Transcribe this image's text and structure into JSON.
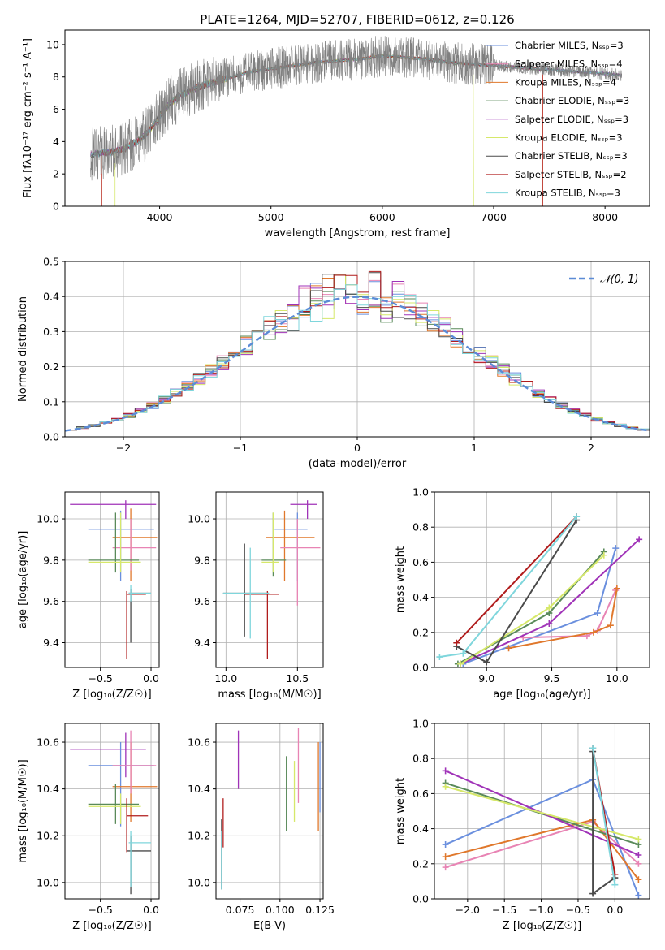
{
  "title": "PLATE=1264, MJD=52707, FIBERID=0612, z=0.126",
  "colors": {
    "Chabrier MILES": "#6a8fde",
    "Salpeter MILES": "#e884b4",
    "Kroupa MILES": "#e0782c",
    "Chabrier ELODIE": "#5a8a5a",
    "Salpeter ELODIE": "#a033b8",
    "Kroupa ELODIE": "#d6e86a",
    "Chabrier STELIB": "#4a4a4a",
    "Salpeter STELIB": "#b01c1c",
    "Kroupa STELIB": "#7fd6dc"
  },
  "chart_data": [
    {
      "id": "spectrum",
      "type": "line",
      "title": "PLATE=1264, MJD=52707, FIBERID=0612, z=0.126",
      "xlabel": "wavelength [Angstrom, rest frame]",
      "ylabel": "Flux [fλ10⁻¹⁷ erg cm⁻² s⁻¹ A⁻¹]",
      "xlim": [
        3150,
        8400
      ],
      "ylim": [
        0,
        10.9
      ],
      "xticks": [
        4000,
        5000,
        6000,
        7000,
        8000
      ],
      "yticks": [
        0,
        2,
        4,
        6,
        8,
        10
      ],
      "grid": false,
      "legend_position": "top-right",
      "legend": [
        {
          "label": "Chabrier MILES, Nₛₛₚ=3",
          "color": "#6a8fde"
        },
        {
          "label": "Salpeter MILES, Nₛₛₚ=4",
          "color": "#e884b4"
        },
        {
          "label": "Kroupa MILES, Nₛₛₚ=4",
          "color": "#e0782c"
        },
        {
          "label": "Chabrier ELODIE, Nₛₛₚ=3",
          "color": "#5a8a5a"
        },
        {
          "label": "Salpeter ELODIE, Nₛₛₚ=3",
          "color": "#a033b8"
        },
        {
          "label": "Kroupa ELODIE, Nₛₛₚ=3",
          "color": "#d6e86a"
        },
        {
          "label": "Chabrier STELIB, Nₛₛₚ=3",
          "color": "#4a4a4a"
        },
        {
          "label": "Salpeter STELIB, Nₛₛₚ=2",
          "color": "#b01c1c"
        },
        {
          "label": "Kroupa STELIB, Nₛₛₚ=3",
          "color": "#7fd6dc"
        }
      ],
      "data_curve": {
        "x": [
          3380,
          3600,
          3700,
          3800,
          3900,
          4000,
          4100,
          4200,
          4400,
          4600,
          4800,
          5000,
          5200,
          5400,
          5600,
          5800,
          6000,
          6200,
          6400,
          6600,
          6800,
          7000,
          7200,
          7400,
          7600,
          7800,
          8000,
          8150
        ],
        "y": [
          3.2,
          3.4,
          3.6,
          4.0,
          4.6,
          5.6,
          6.4,
          6.9,
          7.5,
          7.9,
          8.3,
          8.5,
          8.7,
          8.9,
          9.0,
          9.1,
          9.3,
          9.2,
          9.1,
          8.9,
          8.8,
          8.7,
          8.6,
          8.5,
          8.4,
          8.3,
          8.2,
          8.1
        ]
      },
      "model_cutoffs": {
        "Kroupa ELODIE": [
          3600,
          6820
        ],
        "Salpeter STELIB": [
          3480,
          7440
        ],
        "Kroupa MILES": [
          3480,
          7440
        ]
      }
    },
    {
      "id": "residuals",
      "type": "area",
      "xlabel": "(data-model)/error",
      "ylabel": "Normed distribution",
      "xlim": [
        -2.5,
        2.5
      ],
      "ylim": [
        0,
        0.5
      ],
      "xticks": [
        -2,
        -1,
        0,
        1,
        2
      ],
      "yticks": [
        0.0,
        0.1,
        0.2,
        0.3,
        0.4,
        0.5
      ],
      "grid": true,
      "legend_position": "top-right",
      "gaussian_label": "𝒩(0, 1)",
      "gaussian": {
        "mean": 0,
        "sigma": 1,
        "color": "#5b8bd6"
      },
      "bin_width": 0.1,
      "bin_start": -2.5
    },
    {
      "id": "age_vs_Z",
      "type": "scatter",
      "xlabel": "Z [log₁₀(Z/Z☉)]",
      "ylabel": "age  [log₁₀(age/yr)]",
      "xlim": [
        -0.85,
        0.08
      ],
      "ylim": [
        9.28,
        10.13
      ],
      "xticks": [
        -0.5,
        0.0
      ],
      "yticks": [
        9.4,
        9.6,
        9.8,
        10.0
      ],
      "grid": true,
      "points": [
        {
          "m": "Salpeter ELODIE",
          "x": -0.25,
          "y": 10.07,
          "xe": [
            -0.8,
            0.05
          ],
          "ye": [
            10.0,
            10.09
          ]
        },
        {
          "m": "Chabrier MILES",
          "x": -0.3,
          "y": 9.95,
          "xe": [
            -0.62,
            0.03
          ],
          "ye": [
            9.7,
            10.04
          ]
        },
        {
          "m": "Kroupa MILES",
          "x": -0.2,
          "y": 9.91,
          "xe": [
            -0.38,
            0.06
          ],
          "ye": [
            9.7,
            10.05
          ]
        },
        {
          "m": "Salpeter MILES",
          "x": -0.2,
          "y": 9.86,
          "xe": [
            -0.38,
            0.05
          ],
          "ye": [
            9.75,
            10.0
          ]
        },
        {
          "m": "Chabrier ELODIE",
          "x": -0.35,
          "y": 9.8,
          "xe": [
            -0.62,
            -0.12
          ],
          "ye": [
            9.74,
            10.03
          ]
        },
        {
          "m": "Kroupa ELODIE",
          "x": -0.3,
          "y": 9.79,
          "xe": [
            -0.62,
            -0.1
          ],
          "ye": [
            9.74,
            10.03
          ]
        },
        {
          "m": "Chabrier STELIB",
          "x": -0.2,
          "y": 9.64,
          "xe": [
            -0.22,
            0.0
          ],
          "ye": [
            9.4,
            9.66
          ]
        },
        {
          "m": "Salpeter STELIB",
          "x": -0.24,
          "y": 9.635,
          "xe": [
            -0.24,
            -0.05
          ],
          "ye": [
            9.32,
            9.65
          ]
        },
        {
          "m": "Kroupa STELIB",
          "x": -0.2,
          "y": 9.64,
          "xe": [
            -0.22,
            0.0
          ],
          "ye": [
            9.6,
            9.68
          ]
        }
      ]
    },
    {
      "id": "age_vs_mass",
      "type": "scatter",
      "xlabel": "mass [log₁₀(M/M☉)]",
      "ylabel": "",
      "xlim": [
        9.93,
        10.68
      ],
      "ylim": [
        9.28,
        10.13
      ],
      "xticks": [
        10.0,
        10.5
      ],
      "yticks": [
        9.4,
        9.6,
        9.8,
        10.0
      ],
      "grid": true,
      "points": [
        {
          "m": "Salpeter ELODIE",
          "x": 10.57,
          "y": 10.07,
          "xe": [
            10.45,
            10.64
          ],
          "ye": [
            10.0,
            10.09
          ]
        },
        {
          "m": "Chabrier MILES",
          "x": 10.5,
          "y": 9.95,
          "xe": [
            10.34,
            10.57
          ],
          "ye": [
            9.7,
            10.03
          ]
        },
        {
          "m": "Kroupa MILES",
          "x": 10.41,
          "y": 9.91,
          "xe": [
            10.28,
            10.62
          ],
          "ye": [
            9.7,
            10.04
          ]
        },
        {
          "m": "Salpeter MILES",
          "x": 10.5,
          "y": 9.86,
          "xe": [
            10.38,
            10.66
          ],
          "ye": [
            9.58,
            10.0
          ]
        },
        {
          "m": "Chabrier ELODIE",
          "x": 10.33,
          "y": 9.8,
          "xe": [
            10.25,
            10.42
          ],
          "ye": [
            9.72,
            10.03
          ]
        },
        {
          "m": "Kroupa ELODIE",
          "x": 10.33,
          "y": 9.79,
          "xe": [
            10.25,
            10.37
          ],
          "ye": [
            9.74,
            10.03
          ]
        },
        {
          "m": "Chabrier STELIB",
          "x": 10.13,
          "y": 9.64,
          "xe": [
            9.98,
            10.3
          ],
          "ye": [
            9.43,
            9.88
          ]
        },
        {
          "m": "Salpeter STELIB",
          "x": 10.29,
          "y": 9.635,
          "xe": [
            10.13,
            10.37
          ],
          "ye": [
            9.32,
            9.65
          ]
        },
        {
          "m": "Kroupa STELIB",
          "x": 10.17,
          "y": 9.64,
          "xe": [
            9.98,
            10.3
          ],
          "ye": [
            9.42,
            9.86
          ]
        }
      ]
    },
    {
      "id": "weight_vs_age",
      "type": "line",
      "xlabel": "age  [log₁₀(age/yr)]",
      "ylabel": "mass weight",
      "xlim": [
        8.6,
        10.25
      ],
      "ylim": [
        0,
        1.0
      ],
      "xticks": [
        9.0,
        9.5,
        10.0
      ],
      "yticks": [
        0.0,
        0.2,
        0.4,
        0.6,
        0.8,
        1.0
      ],
      "grid": true,
      "series": [
        {
          "m": "Chabrier MILES",
          "x": [
            8.82,
            9.85,
            9.99
          ],
          "y": [
            0.02,
            0.31,
            0.68
          ]
        },
        {
          "m": "Salpeter MILES",
          "x": [
            9.28,
            9.77,
            9.85,
            9.99
          ],
          "y": [
            0.17,
            0.18,
            0.21,
            0.44
          ]
        },
        {
          "m": "Kroupa MILES",
          "x": [
            9.17,
            9.82,
            9.95,
            10.0
          ],
          "y": [
            0.11,
            0.2,
            0.24,
            0.45
          ]
        },
        {
          "m": "Chabrier ELODIE",
          "x": [
            8.78,
            9.48,
            9.9
          ],
          "y": [
            0.02,
            0.31,
            0.66
          ]
        },
        {
          "m": "Salpeter ELODIE",
          "x": [
            8.8,
            9.48,
            10.17
          ],
          "y": [
            0.02,
            0.25,
            0.73
          ]
        },
        {
          "m": "Kroupa ELODIE",
          "x": [
            8.8,
            9.48,
            9.9
          ],
          "y": [
            0.02,
            0.34,
            0.64
          ]
        },
        {
          "m": "Chabrier STELIB",
          "x": [
            8.77,
            9.0,
            9.69
          ],
          "y": [
            0.12,
            0.03,
            0.84
          ]
        },
        {
          "m": "Salpeter STELIB",
          "x": [
            8.77,
            9.69
          ],
          "y": [
            0.14,
            0.86
          ]
        },
        {
          "m": "Kroupa STELIB",
          "x": [
            8.64,
            8.82,
            9.69
          ],
          "y": [
            0.06,
            0.08,
            0.86
          ]
        }
      ]
    },
    {
      "id": "mass_vs_Z",
      "type": "scatter",
      "xlabel": "Z [log₁₀(Z/Z☉)]",
      "ylabel": "mass [log₁₀(M/M☉)]",
      "xlim": [
        -0.85,
        0.08
      ],
      "ylim": [
        9.93,
        10.68
      ],
      "xticks": [
        -0.5,
        0.0
      ],
      "yticks": [
        10.0,
        10.2,
        10.4,
        10.6
      ],
      "grid": true,
      "points": [
        {
          "m": "Salpeter ELODIE",
          "x": -0.25,
          "y": 10.57,
          "xe": [
            -0.8,
            -0.05
          ],
          "ye": [
            10.45,
            10.64
          ]
        },
        {
          "m": "Chabrier MILES",
          "x": -0.3,
          "y": 10.5,
          "xe": [
            -0.62,
            0.03
          ],
          "ye": [
            10.24,
            10.6
          ]
        },
        {
          "m": "Kroupa MILES",
          "x": -0.2,
          "y": 10.41,
          "xe": [
            -0.38,
            0.06
          ],
          "ye": [
            10.26,
            10.6
          ]
        },
        {
          "m": "Salpeter MILES",
          "x": -0.2,
          "y": 10.5,
          "xe": [
            -0.38,
            0.05
          ],
          "ye": [
            10.38,
            10.65
          ]
        },
        {
          "m": "Chabrier ELODIE",
          "x": -0.35,
          "y": 10.335,
          "xe": [
            -0.62,
            -0.12
          ],
          "ye": [
            10.25,
            10.42
          ]
        },
        {
          "m": "Kroupa ELODIE",
          "x": -0.3,
          "y": 10.325,
          "xe": [
            -0.62,
            -0.1
          ],
          "ye": [
            10.25,
            10.38
          ]
        },
        {
          "m": "Chabrier STELIB",
          "x": -0.2,
          "y": 10.135,
          "xe": [
            -0.24,
            0.0
          ],
          "ye": [
            9.95,
            10.2
          ]
        },
        {
          "m": "Salpeter STELIB",
          "x": -0.24,
          "y": 10.285,
          "xe": [
            -0.24,
            -0.03
          ],
          "ye": [
            10.13,
            10.36
          ]
        },
        {
          "m": "Kroupa STELIB",
          "x": -0.2,
          "y": 10.17,
          "xe": [
            -0.22,
            0.0
          ],
          "ye": [
            9.98,
            10.22
          ]
        }
      ]
    },
    {
      "id": "mass_vs_ebv",
      "type": "scatter",
      "xlabel": "E(B-V)",
      "ylabel": "",
      "xlim": [
        0.06,
        0.127
      ],
      "ylim": [
        9.93,
        10.68
      ],
      "xticks": [
        0.075,
        0.1,
        0.125
      ],
      "xticklabels": [
        "0.075",
        "0.100",
        "0.125"
      ],
      "yticks": [
        10.0,
        10.2,
        10.4,
        10.6
      ],
      "grid": true,
      "points": [
        {
          "m": "Salpeter ELODIE",
          "x": 0.074,
          "ye": [
            10.4,
            10.65
          ]
        },
        {
          "m": "Chabrier ELODIE",
          "x": 0.104,
          "ye": [
            10.22,
            10.54
          ]
        },
        {
          "m": "Kroupa ELODIE",
          "x": 0.109,
          "ye": [
            10.26,
            10.52
          ]
        },
        {
          "m": "Salpeter MILES",
          "x": 0.1115,
          "ye": [
            10.34,
            10.66
          ]
        },
        {
          "m": "Kroupa MILES",
          "x": 0.124,
          "ye": [
            10.22,
            10.6
          ]
        },
        {
          "m": "Chabrier MILES",
          "x": 0.125,
          "ye": [
            10.3,
            10.6
          ]
        },
        {
          "m": "Salpeter STELIB",
          "x": 0.0645,
          "ye": [
            10.15,
            10.36
          ]
        },
        {
          "m": "Chabrier STELIB",
          "x": 0.0635,
          "ye": [
            9.97,
            10.27
          ]
        },
        {
          "m": "Kroupa STELIB",
          "x": 0.0635,
          "ye": [
            9.97,
            10.22
          ]
        }
      ]
    },
    {
      "id": "weight_vs_Z",
      "type": "line",
      "xlabel": "Z [log₁₀(Z/Z☉)]",
      "ylabel": "mass weight",
      "xlim": [
        -2.45,
        0.47
      ],
      "ylim": [
        0,
        1.0
      ],
      "xticks": [
        -2.0,
        -1.5,
        -1.0,
        -0.5,
        0.0
      ],
      "yticks": [
        0.0,
        0.2,
        0.4,
        0.6,
        0.8,
        1.0
      ],
      "grid": true,
      "series": [
        {
          "m": "Chabrier MILES",
          "x": [
            -2.3,
            -0.3,
            0.32
          ],
          "y": [
            0.31,
            0.68,
            0.02
          ]
        },
        {
          "m": "Salpeter MILES",
          "x": [
            -2.3,
            -0.3,
            0.32
          ],
          "y": [
            0.18,
            0.44,
            0.2
          ]
        },
        {
          "m": "Kroupa MILES",
          "x": [
            -2.3,
            -0.3,
            0.32
          ],
          "y": [
            0.24,
            0.45,
            0.11
          ]
        },
        {
          "m": "Chabrier ELODIE",
          "x": [
            -2.3,
            0.32
          ],
          "y": [
            0.66,
            0.31
          ]
        },
        {
          "m": "Salpeter ELODIE",
          "x": [
            -2.3,
            0.32
          ],
          "y": [
            0.73,
            0.25
          ]
        },
        {
          "m": "Kroupa ELODIE",
          "x": [
            -2.3,
            0.32
          ],
          "y": [
            0.64,
            0.34
          ]
        },
        {
          "m": "Chabrier STELIB",
          "x": [
            -0.3,
            -0.3,
            0.0
          ],
          "y": [
            0.84,
            0.03,
            0.12
          ]
        },
        {
          "m": "Salpeter STELIB",
          "x": [
            -0.3,
            0.0
          ],
          "y": [
            0.86,
            0.14
          ]
        },
        {
          "m": "Kroupa STELIB",
          "x": [
            -0.3,
            0.0
          ],
          "y": [
            0.86,
            0.08
          ]
        }
      ]
    }
  ]
}
